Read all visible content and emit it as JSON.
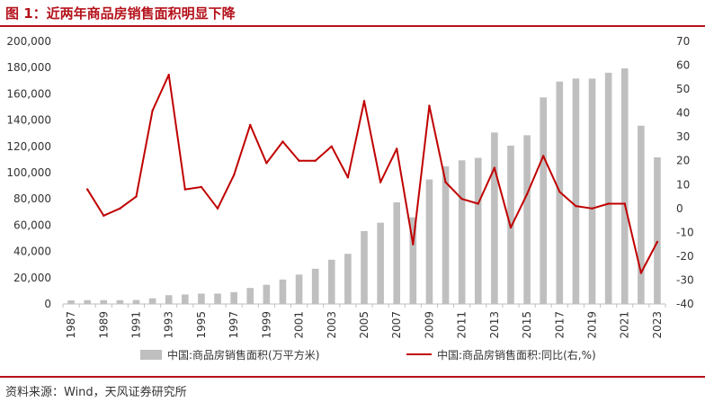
{
  "title": "图 1：近两年商品房销售面积明显下降",
  "source": "资料来源：Wind，天风证券研究所",
  "colors": {
    "accent": "#b5121b",
    "bar": "#bfbfbf",
    "line": "#c00000"
  },
  "chart_data": {
    "type": "bar",
    "x": [
      "1987",
      "1988",
      "1989",
      "1990",
      "1991",
      "1992",
      "1993",
      "1994",
      "1995",
      "1996",
      "1997",
      "1998",
      "1999",
      "2000",
      "2001",
      "2002",
      "2003",
      "2004",
      "2005",
      "2006",
      "2007",
      "2008",
      "2009",
      "2010",
      "2011",
      "2012",
      "2013",
      "2014",
      "2015",
      "2016",
      "2017",
      "2018",
      "2019",
      "2020",
      "2021",
      "2022",
      "2023"
    ],
    "x_tick_labels": [
      "1987",
      "1989",
      "1991",
      "1993",
      "1995",
      "1997",
      "1999",
      "2001",
      "2003",
      "2005",
      "2007",
      "2009",
      "2011",
      "2013",
      "2015",
      "2017",
      "2019",
      "2021",
      "2023"
    ],
    "series": [
      {
        "name": "中国:商品房销售面积(万平方米)",
        "type": "bar",
        "axis": "left",
        "values": [
          2700,
          2900,
          2900,
          2900,
          3000,
          4300,
          6700,
          7200,
          7900,
          7900,
          9000,
          12200,
          14600,
          18600,
          22400,
          26800,
          33700,
          38200,
          55500,
          61900,
          77400,
          66000,
          94800,
          104800,
          109400,
          111300,
          130600,
          120600,
          128500,
          157300,
          169400,
          171700,
          171600,
          176100,
          179400,
          135800,
          111700
        ]
      },
      {
        "name": "中国:商品房销售面积:同比(右,%)",
        "type": "line",
        "axis": "right",
        "values": [
          null,
          8,
          -3,
          0,
          5,
          41,
          56,
          8,
          9,
          0,
          14,
          35,
          19,
          28,
          20,
          20,
          26,
          13,
          45,
          11,
          25,
          -15,
          43,
          11,
          4,
          2,
          17,
          -8,
          6,
          22,
          7,
          1,
          0,
          2,
          2,
          -27,
          -14
        ]
      }
    ],
    "y_left": {
      "range": [
        0,
        200000
      ],
      "ticks": [
        "0",
        "20,000",
        "40,000",
        "60,000",
        "80,000",
        "100,000",
        "120,000",
        "140,000",
        "160,000",
        "180,000",
        "200,000"
      ]
    },
    "y_right": {
      "range": [
        -40,
        70
      ],
      "ticks": [
        "-40",
        "-30",
        "-20",
        "-10",
        "0",
        "10",
        "20",
        "30",
        "40",
        "50",
        "60",
        "70"
      ]
    },
    "grid": false,
    "legend_position": "bottom"
  }
}
